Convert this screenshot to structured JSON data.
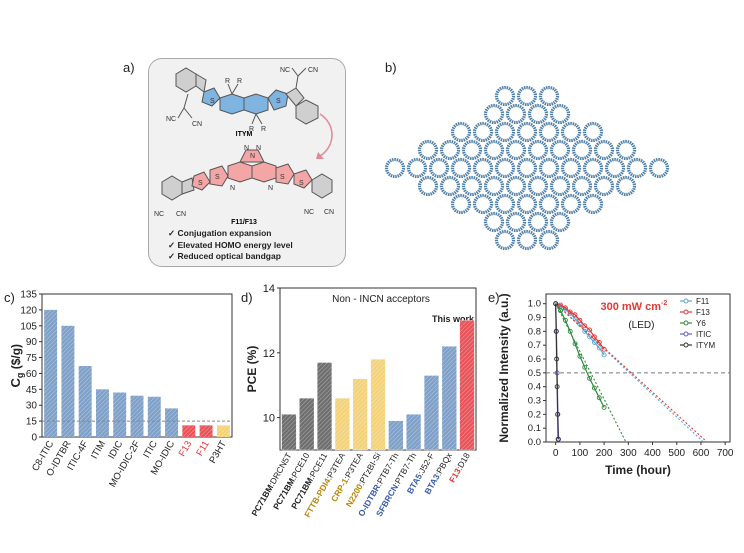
{
  "figure": {
    "panel_labels": [
      "a)",
      "b)",
      "c)",
      "d)",
      "e)"
    ]
  },
  "panel_a": {
    "top_molecule": "ITYM",
    "bottom_molecule": "F11/F13",
    "substituent": "R",
    "cyano": "NC",
    "cyano_right": "CN",
    "thiophene_s": "S",
    "nitrogen": "N",
    "bullets": [
      "Conjugation expansion",
      "Elevated HOMO energy level",
      "Reduced optical bandgap"
    ],
    "colors": {
      "itym": "#5b9bd5",
      "f13": "#f08080"
    }
  },
  "chart_data": [
    {
      "panel": "c",
      "type": "bar",
      "ylabel": "C",
      "ylabel_sub": "g",
      "ylabel_unit": "($/g)",
      "ylim": [
        0,
        135
      ],
      "yticks": [
        0,
        15,
        30,
        45,
        60,
        75,
        90,
        105,
        120,
        135
      ],
      "categories": [
        "C8-ITIC",
        "O-IDTBR",
        "ITIC-4F",
        "ITIM",
        "IDIC",
        "MO-IDIC-2F",
        "ITIC",
        "MO-IDIC",
        "F13",
        "F11",
        "P3HT"
      ],
      "values": [
        120,
        105,
        67,
        45,
        42,
        39,
        38,
        27,
        11,
        11,
        11
      ],
      "bar_colors": [
        "#7fa0c8",
        "#7fa0c8",
        "#7fa0c8",
        "#7fa0c8",
        "#7fa0c8",
        "#7fa0c8",
        "#7fa0c8",
        "#7fa0c8",
        "#e8545a",
        "#e8545a",
        "#f3d27a"
      ],
      "label_colors": [
        "#222",
        "#222",
        "#222",
        "#222",
        "#222",
        "#222",
        "#222",
        "#222",
        "#e53935",
        "#e53935",
        "#222"
      ],
      "reference_line": 15
    },
    {
      "panel": "d",
      "type": "bar",
      "title": "Non - INCN acceptors",
      "annotation": "This work",
      "ylabel": "PCE (%)",
      "ylim": [
        9,
        14
      ],
      "yticks": [
        10,
        12,
        14
      ],
      "categories": [
        {
          "a": "PC71BM",
          "b": ":DRCN5T",
          "ca": "#222"
        },
        {
          "a": "PC71BM",
          "b": ":PCE10",
          "ca": "#222"
        },
        {
          "a": "PC71BM",
          "b": ":PCE11",
          "ca": "#222"
        },
        {
          "a": "FTTB-PDI4",
          "b": ":P3TEA",
          "ca": "#b8860b"
        },
        {
          "a": "CRP-1",
          "b": ":P3TEA",
          "ca": "#b8860b"
        },
        {
          "a": "N2200",
          "b": ":PTzBI-Si",
          "ca": "#b8860b"
        },
        {
          "a": "O-IDTBR",
          "b": ":PTB7-Th",
          "ca": "#3a5ba8"
        },
        {
          "a": "SFBRCN",
          "b": ":PTB7-Th",
          "ca": "#3a5ba8"
        },
        {
          "a": "BTA5",
          "b": ":J52-F",
          "ca": "#3a5ba8"
        },
        {
          "a": "BTA3",
          "b": ":PBQx",
          "ca": "#3a5ba8"
        },
        {
          "a": "F13",
          "b": ":D18",
          "ca": "#e53935"
        }
      ],
      "values": [
        10.1,
        10.6,
        11.7,
        10.6,
        11.2,
        11.8,
        9.9,
        10.1,
        11.3,
        12.2,
        13.0
      ],
      "bar_colors": [
        "#6f6f6f",
        "#6f6f6f",
        "#6f6f6f",
        "#f3d27a",
        "#f3d27a",
        "#f3d27a",
        "#7fa0c8",
        "#7fa0c8",
        "#7fa0c8",
        "#7fa0c8",
        "#e8545a"
      ]
    },
    {
      "panel": "e",
      "type": "line",
      "title": "300 mW cm",
      "title_sup": "-2",
      "subtitle": "(LED)",
      "xlabel": "Time (hour)",
      "ylabel": "Normalized Intensity (a.u.)",
      "xlim": [
        -40,
        720
      ],
      "ylim": [
        0,
        1.07
      ],
      "xticks": [
        0,
        100,
        200,
        300,
        400,
        500,
        600,
        700
      ],
      "yticks": [
        0.0,
        0.1,
        0.2,
        0.3,
        0.4,
        0.5,
        0.6,
        0.7,
        0.8,
        0.9,
        1.0
      ],
      "reference_line": 0.5,
      "series": [
        {
          "name": "F11",
          "color": "#5aa6d6",
          "x": [
            0,
            20,
            40,
            60,
            80,
            100,
            120,
            140,
            160,
            180,
            200
          ],
          "y": [
            1.0,
            0.98,
            0.96,
            0.93,
            0.89,
            0.85,
            0.8,
            0.76,
            0.72,
            0.68,
            0.63
          ],
          "fit": [
            [
              0,
              1.0
            ],
            [
              610,
              0.0
            ]
          ]
        },
        {
          "name": "F13",
          "color": "#e53935",
          "x": [
            0,
            20,
            40,
            60,
            80,
            100,
            120,
            140,
            160,
            180,
            200
          ],
          "y": [
            1.0,
            0.99,
            0.97,
            0.94,
            0.92,
            0.88,
            0.84,
            0.81,
            0.76,
            0.72,
            0.67
          ],
          "fit": [
            [
              0,
              1.0
            ],
            [
              625,
              0.0
            ]
          ]
        },
        {
          "name": "Y6",
          "color": "#2e8b3a",
          "x": [
            0,
            20,
            40,
            60,
            80,
            100,
            120,
            140,
            160,
            180,
            200
          ],
          "y": [
            1.0,
            0.95,
            0.88,
            0.8,
            0.71,
            0.62,
            0.54,
            0.46,
            0.39,
            0.32,
            0.25
          ],
          "fit": [
            [
              0,
              1.0
            ],
            [
              290,
              0.0
            ]
          ]
        },
        {
          "name": "ITIC",
          "color": "#6a5acd",
          "x": [
            0,
            3,
            6,
            9,
            12
          ],
          "y": [
            1.0,
            0.8,
            0.5,
            0.2,
            0.02
          ],
          "fit": null
        },
        {
          "name": "ITYM",
          "color": "#333333",
          "x": [
            0,
            2,
            4,
            6,
            8,
            10
          ],
          "y": [
            1.0,
            0.8,
            0.6,
            0.4,
            0.2,
            0.02
          ],
          "fit": null
        }
      ]
    }
  ]
}
